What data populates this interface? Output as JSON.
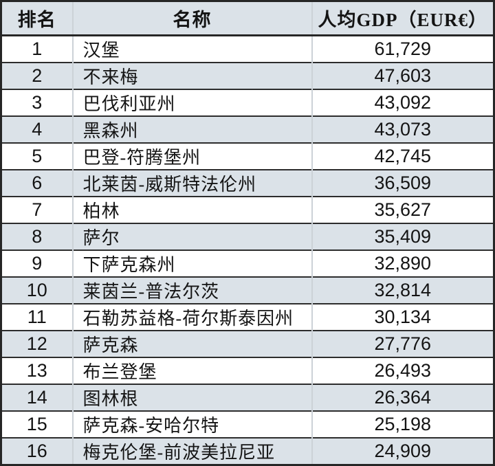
{
  "chart_data": {
    "type": "table",
    "title": "",
    "columns": [
      "排名",
      "名称",
      "人均GDP（EUR€）"
    ],
    "categories": [
      "汉堡",
      "不来梅",
      "巴伐利亚州",
      "黑森州",
      "巴登-符腾堡州",
      "北莱茵-威斯特法伦州",
      "柏林",
      "萨尔",
      "下萨克森州",
      "莱茵兰-普法尔茨",
      "石勒苏益格-荷尔斯泰因州",
      "萨克森",
      "布兰登堡",
      "图林根",
      "萨克森-安哈尔特",
      "梅克伦堡-前波美拉尼亚"
    ],
    "values": [
      61729,
      47603,
      43092,
      43073,
      42745,
      36509,
      35627,
      35409,
      32890,
      32814,
      30134,
      27776,
      26493,
      26364,
      25198,
      24909
    ],
    "rows": [
      {
        "rank": "1",
        "name": "汉堡",
        "value": "61,729"
      },
      {
        "rank": "2",
        "name": "不来梅",
        "value": "47,603"
      },
      {
        "rank": "3",
        "name": "巴伐利亚州",
        "value": "43,092"
      },
      {
        "rank": "4",
        "name": "黑森州",
        "value": "43,073"
      },
      {
        "rank": "5",
        "name": "巴登-符腾堡州",
        "value": "42,745"
      },
      {
        "rank": "6",
        "name": "北莱茵-威斯特法伦州",
        "value": "36,509"
      },
      {
        "rank": "7",
        "name": "柏林",
        "value": "35,627"
      },
      {
        "rank": "8",
        "name": "萨尔",
        "value": "35,409"
      },
      {
        "rank": "9",
        "name": "下萨克森州",
        "value": "32,890"
      },
      {
        "rank": "10",
        "name": "莱茵兰-普法尔茨",
        "value": "32,814"
      },
      {
        "rank": "11",
        "name": "石勒苏益格-荷尔斯泰因州",
        "value": "30,134"
      },
      {
        "rank": "12",
        "name": "萨克森",
        "value": "27,776"
      },
      {
        "rank": "13",
        "name": "布兰登堡",
        "value": "26,493"
      },
      {
        "rank": "14",
        "name": "图林根",
        "value": "26,364"
      },
      {
        "rank": "15",
        "name": "萨克森-安哈尔特",
        "value": "25,198"
      },
      {
        "rank": "16",
        "name": "梅克伦堡-前波美拉尼亚",
        "value": "24,909"
      }
    ],
    "layout": {
      "stripe_pattern": "even-rows-shaded",
      "value_alignment": "center",
      "name_alignment": "left"
    }
  },
  "colors": {
    "stripe_background": "#dbe2e8",
    "row_background": "#ffffff",
    "border_dark": "#262626",
    "border_light": "#ccd2d7",
    "text": "#141414"
  }
}
